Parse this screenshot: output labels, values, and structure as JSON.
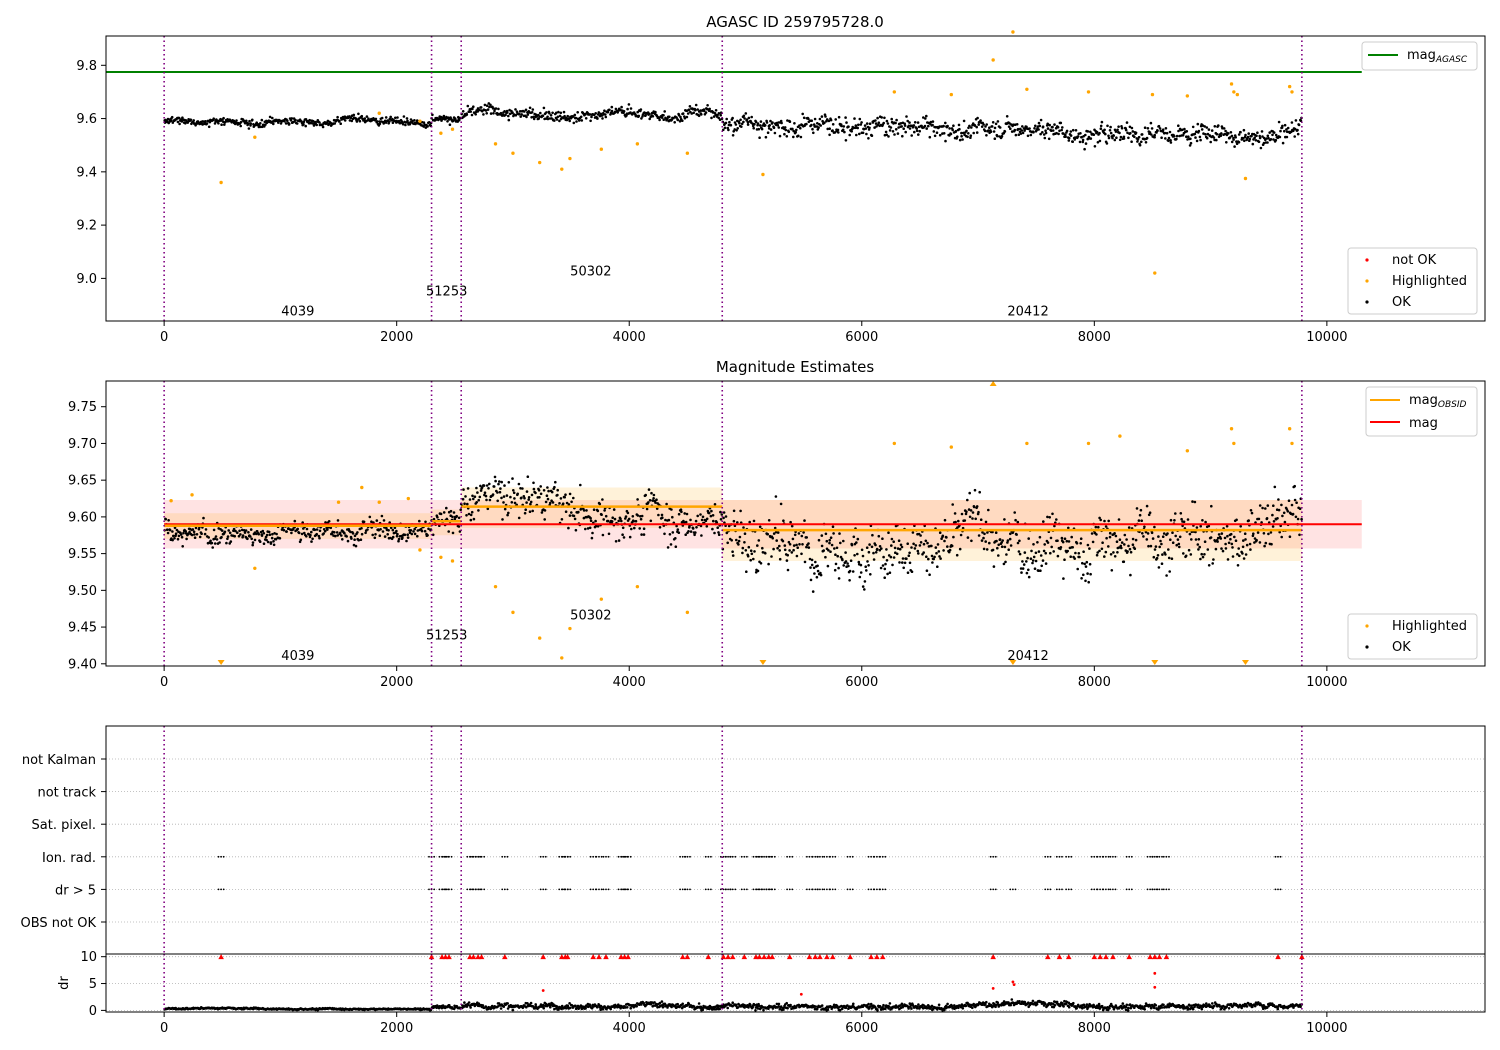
{
  "figure": {
    "background": "#ffffff"
  },
  "chart_data": [
    {
      "id": "panel1",
      "type": "scatter",
      "title": "AGASC ID 259795728.0",
      "xlim": [
        -500,
        11360
      ],
      "ylim": [
        8.84,
        9.91
      ],
      "xticks": [
        0,
        2000,
        4000,
        6000,
        8000,
        10000
      ],
      "yticks": [
        9.0,
        9.2,
        9.4,
        9.6,
        9.8
      ],
      "ytick_labels": [
        "9.0",
        "9.2",
        "9.4",
        "9.6",
        "9.8"
      ],
      "obsid_boundaries": [
        0,
        2300,
        2555,
        4800,
        9785
      ],
      "obsid_labels": [
        {
          "text": "4039",
          "x": 1150,
          "y": 8.88
        },
        {
          "text": "51253",
          "x": 2430,
          "y": 8.955
        },
        {
          "text": "50302",
          "x": 3670,
          "y": 9.03
        },
        {
          "text": "20412",
          "x": 7430,
          "y": 8.88
        }
      ],
      "mag_agasc": {
        "value": 9.775,
        "x_range": [
          -500,
          10300
        ],
        "color": "#008000"
      },
      "segments": [
        {
          "x": [
            0,
            2300
          ],
          "center": 9.59,
          "spread": 0.012
        },
        {
          "x": [
            2300,
            2555
          ],
          "center": 9.6,
          "spread": 0.012
        },
        {
          "x": [
            2555,
            4800
          ],
          "center": 9.615,
          "spread": 0.018
        },
        {
          "x": [
            4800,
            9785
          ],
          "center": 9.58,
          "spread": 0.03
        }
      ],
      "highlighted_points": [
        [
          490,
          9.36
        ],
        [
          780,
          9.53
        ],
        [
          1850,
          9.62
        ],
        [
          2200,
          9.59
        ],
        [
          2380,
          9.545
        ],
        [
          2480,
          9.56
        ],
        [
          2850,
          9.505
        ],
        [
          3000,
          9.47
        ],
        [
          3230,
          9.435
        ],
        [
          3420,
          9.41
        ],
        [
          3490,
          9.45
        ],
        [
          3760,
          9.485
        ],
        [
          4070,
          9.505
        ],
        [
          4500,
          9.47
        ],
        [
          5150,
          9.39
        ],
        [
          6280,
          9.7
        ],
        [
          6770,
          9.69
        ],
        [
          7130,
          9.82
        ],
        [
          7300,
          9.925
        ],
        [
          7420,
          9.71
        ],
        [
          7950,
          9.7
        ],
        [
          8500,
          9.69
        ],
        [
          8520,
          9.02
        ],
        [
          8800,
          9.685
        ],
        [
          9180,
          9.73
        ],
        [
          9200,
          9.7
        ],
        [
          9230,
          9.69
        ],
        [
          9300,
          9.375
        ],
        [
          9680,
          9.72
        ],
        [
          9700,
          9.7
        ]
      ],
      "legend_line": {
        "label": "mag",
        "label_sub": "AGASC",
        "location": "upper right"
      },
      "legend_points": {
        "location": "lower right",
        "entries": [
          {
            "label": "not OK",
            "color": "#ff0000"
          },
          {
            "label": "Highlighted",
            "color": "#ffa500"
          },
          {
            "label": "OK",
            "color": "#000000"
          }
        ]
      }
    },
    {
      "id": "panel2",
      "type": "scatter",
      "title": "Magnitude Estimates",
      "xlim": [
        -500,
        11360
      ],
      "ylim": [
        9.397,
        9.785
      ],
      "xticks": [
        0,
        2000,
        4000,
        6000,
        8000,
        10000
      ],
      "yticks": [
        9.4,
        9.45,
        9.5,
        9.55,
        9.6,
        9.65,
        9.7,
        9.75
      ],
      "ytick_labels": [
        "9.40",
        "9.45",
        "9.50",
        "9.55",
        "9.60",
        "9.65",
        "9.70",
        "9.75"
      ],
      "obsid_boundaries": [
        0,
        2300,
        2555,
        4800,
        9785
      ],
      "obsid_labels": [
        {
          "text": "4039",
          "x": 1150,
          "y": 9.412
        },
        {
          "text": "51253",
          "x": 2430,
          "y": 9.44
        },
        {
          "text": "50302",
          "x": 3670,
          "y": 9.467
        },
        {
          "text": "20412",
          "x": 7430,
          "y": 9.412
        }
      ],
      "mag": {
        "value": 9.59,
        "band": [
          9.557,
          9.623
        ],
        "x_range": [
          0,
          10300
        ],
        "color": "#ff0000"
      },
      "mag_obsid": [
        {
          "x": [
            0,
            2300
          ],
          "value": 9.588,
          "band": [
            9.57,
            9.605
          ]
        },
        {
          "x": [
            2300,
            2555
          ],
          "value": 9.594,
          "band": [
            9.575,
            9.61
          ]
        },
        {
          "x": [
            2555,
            4800
          ],
          "value": 9.614,
          "band": [
            9.585,
            9.64
          ]
        },
        {
          "x": [
            4800,
            9785
          ],
          "value": 9.582,
          "band": [
            9.54,
            9.623
          ]
        }
      ],
      "segments": [
        {
          "x": [
            0,
            2300
          ],
          "center": 9.588,
          "spread": 0.012
        },
        {
          "x": [
            2300,
            2555
          ],
          "center": 9.595,
          "spread": 0.014
        },
        {
          "x": [
            2555,
            4800
          ],
          "center": 9.614,
          "spread": 0.022
        },
        {
          "x": [
            4800,
            9785
          ],
          "center": 9.585,
          "spread": 0.032
        }
      ],
      "highlighted_points": [
        [
          60,
          9.622
        ],
        [
          240,
          9.63
        ],
        [
          490,
          9.4
        ],
        [
          780,
          9.53
        ],
        [
          1500,
          9.62
        ],
        [
          1700,
          9.64
        ],
        [
          1850,
          9.62
        ],
        [
          2100,
          9.625
        ],
        [
          2200,
          9.555
        ],
        [
          2380,
          9.545
        ],
        [
          2480,
          9.54
        ],
        [
          2850,
          9.505
        ],
        [
          3000,
          9.47
        ],
        [
          3230,
          9.435
        ],
        [
          3420,
          9.408
        ],
        [
          3490,
          9.448
        ],
        [
          3760,
          9.488
        ],
        [
          4070,
          9.505
        ],
        [
          4500,
          9.47
        ],
        [
          5150,
          9.4
        ],
        [
          6280,
          9.7
        ],
        [
          6770,
          9.695
        ],
        [
          7130,
          9.78
        ],
        [
          7300,
          9.4
        ],
        [
          7420,
          9.7
        ],
        [
          7950,
          9.7
        ],
        [
          8220,
          9.71
        ],
        [
          8520,
          9.4
        ],
        [
          8800,
          9.69
        ],
        [
          9180,
          9.72
        ],
        [
          9200,
          9.7
        ],
        [
          9300,
          9.4
        ],
        [
          9680,
          9.72
        ],
        [
          9700,
          9.7
        ]
      ],
      "legend_line": {
        "location": "upper right",
        "entries": [
          {
            "label": "mag",
            "label_sub": "OBSID",
            "color": "#ffa500"
          },
          {
            "label": "mag",
            "label_sub": "",
            "color": "#ff0000"
          }
        ]
      },
      "legend_points": {
        "location": "lower right",
        "entries": [
          {
            "label": "Highlighted",
            "color": "#ffa500"
          },
          {
            "label": "OK",
            "color": "#000000"
          }
        ]
      }
    },
    {
      "id": "panel3",
      "type": "scatter",
      "title": "",
      "xlim": [
        -500,
        11360
      ],
      "obsid_boundaries": [
        0,
        2300,
        2555,
        4800,
        9785
      ],
      "flag_rows": [
        {
          "label": "not Kalman",
          "times": []
        },
        {
          "label": "not track",
          "times": []
        },
        {
          "label": "Sat. pixel.",
          "times": []
        },
        {
          "label": "Ion. rad.",
          "times": [
            490,
            2300,
            2390,
            2420,
            2450,
            2630,
            2660,
            2700,
            2730,
            2930,
            3260,
            3420,
            3450,
            3470,
            3690,
            3740,
            3800,
            3930,
            3960,
            3990,
            4460,
            4500,
            4680,
            4810,
            4850,
            4890,
            4990,
            5090,
            5120,
            5160,
            5200,
            5230,
            5380,
            5550,
            5600,
            5640,
            5700,
            5750,
            5900,
            6080,
            6130,
            6180,
            7130,
            7600,
            7700,
            7780,
            8000,
            8050,
            8100,
            8160,
            8300,
            8480,
            8520,
            8560,
            8620,
            9580
          ]
        },
        {
          "label": "dr > 5",
          "times": [
            490,
            2300,
            2390,
            2420,
            2450,
            2630,
            2660,
            2700,
            2730,
            2930,
            3260,
            3420,
            3450,
            3470,
            3690,
            3740,
            3800,
            3930,
            3960,
            3990,
            4460,
            4500,
            4680,
            4810,
            4850,
            4890,
            4990,
            5090,
            5120,
            5160,
            5200,
            5230,
            5380,
            5550,
            5600,
            5640,
            5700,
            5750,
            5900,
            6080,
            6130,
            6180,
            7130,
            7300,
            7600,
            7700,
            7780,
            8000,
            8050,
            8100,
            8160,
            8300,
            8480,
            8520,
            8560,
            8620,
            9580
          ]
        },
        {
          "label": "OBS not OK",
          "times": []
        }
      ]
    },
    {
      "id": "panel4",
      "type": "scatter",
      "ylabel": "dr",
      "xlim": [
        -500,
        11360
      ],
      "ylim": [
        -0.3,
        10.5
      ],
      "xticks": [
        0,
        2000,
        4000,
        6000,
        8000,
        10000
      ],
      "yticks": [
        0,
        5,
        10
      ],
      "obsid_boundaries": [
        0,
        2300,
        2555,
        4800,
        9785
      ],
      "segments": [
        {
          "x": [
            0,
            2300
          ],
          "center": 0.3,
          "spread": 0.12
        },
        {
          "x": [
            2300,
            2555
          ],
          "center": 0.6,
          "spread": 0.3
        },
        {
          "x": [
            2555,
            4800
          ],
          "center": 1.0,
          "spread": 0.45
        },
        {
          "x": [
            4800,
            9785
          ],
          "center": 0.9,
          "spread": 0.45
        }
      ],
      "not_ok_points": [
        [
          3260,
          3.7
        ],
        [
          5480,
          3.0
        ],
        [
          7130,
          4.1
        ],
        [
          7300,
          5.3
        ],
        [
          7310,
          4.8
        ],
        [
          8520,
          6.9
        ],
        [
          8520,
          4.3
        ]
      ],
      "clip_times": [
        490,
        2300,
        2390,
        2420,
        2450,
        2630,
        2660,
        2700,
        2730,
        2930,
        3260,
        3420,
        3450,
        3470,
        3690,
        3740,
        3800,
        3930,
        3960,
        3990,
        4460,
        4500,
        4680,
        4810,
        4850,
        4890,
        4990,
        5090,
        5120,
        5160,
        5200,
        5230,
        5380,
        5550,
        5600,
        5640,
        5700,
        5750,
        5900,
        6080,
        6130,
        6180,
        7130,
        7600,
        7700,
        7780,
        8000,
        8050,
        8100,
        8160,
        8300,
        8480,
        8520,
        8560,
        8620,
        9580,
        9785
      ],
      "clip_value": 10
    }
  ]
}
